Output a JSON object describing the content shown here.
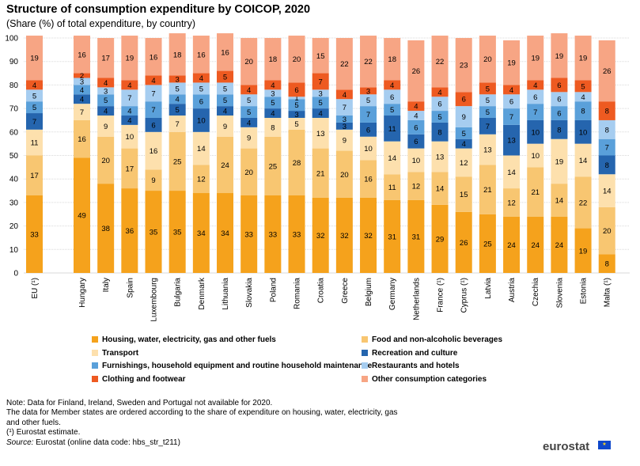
{
  "title": "Structure of consumption expenditure by COICOP, 2020",
  "subtitle": "(Share (%) of total expenditure, by country)",
  "chart_data": {
    "type": "bar",
    "stacked": true,
    "ylim": [
      0,
      100
    ],
    "yticks": [
      0,
      10,
      20,
      30,
      40,
      50,
      60,
      70,
      80,
      90,
      100
    ],
    "grid": true,
    "legend_position": "bottom",
    "categories": [
      "EU (¹)",
      "Hungary",
      "Italy",
      "Spain",
      "Luxembourg",
      "Bulgaria",
      "Denmark",
      "Lithuania",
      "Slovakia",
      "Poland",
      "Romania",
      "Croatia",
      "Greece",
      "Belgium",
      "Germany",
      "Netherlands",
      "France (¹)",
      "Cyprus (¹)",
      "Latvia",
      "Austria",
      "Czechia",
      "Slovenia",
      "Estonia",
      "Malta (¹)"
    ],
    "series": [
      {
        "name": "Housing, water, electricity, gas and other fuels",
        "color": "#f5a21c",
        "label_color": "#000000",
        "values": [
          33,
          49,
          38,
          36,
          35,
          35,
          34,
          34,
          33,
          33,
          33,
          32,
          32,
          32,
          31,
          31,
          29,
          26,
          25,
          24,
          24,
          24,
          19,
          8
        ]
      },
      {
        "name": "Food and non-alcoholic beverages",
        "color": "#f8c671",
        "label_color": "#000000",
        "values": [
          17,
          16,
          20,
          17,
          9,
          25,
          12,
          24,
          20,
          25,
          28,
          21,
          20,
          16,
          11,
          12,
          14,
          15,
          21,
          12,
          21,
          14,
          22,
          20
        ]
      },
      {
        "name": "Transport",
        "color": "#fde0ad",
        "label_color": "#000000",
        "values": [
          11,
          7,
          9,
          10,
          16,
          7,
          14,
          9,
          9,
          8,
          5,
          13,
          9,
          10,
          14,
          10,
          13,
          12,
          13,
          14,
          10,
          19,
          14,
          14
        ]
      },
      {
        "name": "Recreation and culture",
        "color": "#2565ae",
        "label_color": "#000000",
        "values": [
          7,
          4,
          4,
          4,
          6,
          5,
          10,
          4,
          4,
          4,
          3,
          4,
          3,
          6,
          11,
          6,
          8,
          4,
          7,
          13,
          10,
          8,
          10,
          8
        ]
      },
      {
        "name": "Furnishings, household equipment and routine household maintenance",
        "color": "#5aa0da",
        "label_color": "#000000",
        "values": [
          5,
          4,
          5,
          4,
          7,
          4,
          6,
          5,
          5,
          5,
          5,
          5,
          3,
          7,
          5,
          6,
          5,
          5,
          5,
          7,
          7,
          6,
          8,
          7
        ]
      },
      {
        "name": "Restaurants and hotels",
        "color": "#a6cdf0",
        "label_color": "#000000",
        "values": [
          5,
          3,
          3,
          7,
          7,
          5,
          5,
          5,
          5,
          3,
          1,
          3,
          7,
          5,
          6,
          4,
          6,
          9,
          5,
          6,
          6,
          6,
          4,
          8
        ]
      },
      {
        "name": "Clothing and footwear",
        "color": "#ee5a21",
        "label_color": "#000000",
        "values": [
          4,
          2,
          4,
          4,
          4,
          3,
          4,
          5,
          4,
          4,
          6,
          7,
          4,
          3,
          4,
          4,
          4,
          6,
          5,
          4,
          4,
          6,
          5,
          8
        ]
      },
      {
        "name": "Other consumption categories",
        "color": "#f7a584",
        "label_color": "#000000",
        "values": [
          19,
          16,
          17,
          19,
          16,
          18,
          16,
          16,
          20,
          18,
          20,
          15,
          22,
          22,
          18,
          26,
          22,
          23,
          20,
          19,
          19,
          19,
          19,
          26
        ]
      }
    ]
  },
  "notes": {
    "line1": "Note: Data for Finland, Ireland, Sweden and Portugal not available for 2020.",
    "line2": "The data for Member states are ordered according to the share of expenditure on housing, water, electricity, gas",
    "line3": "and other fuels.",
    "line4": "(¹) Eurostat estimate.",
    "source_label": "Source:",
    "source_text": " Eurostat (online data code: hbs_str_t211)"
  },
  "logo": {
    "text": "eurostat",
    "flag_stars": "★"
  }
}
